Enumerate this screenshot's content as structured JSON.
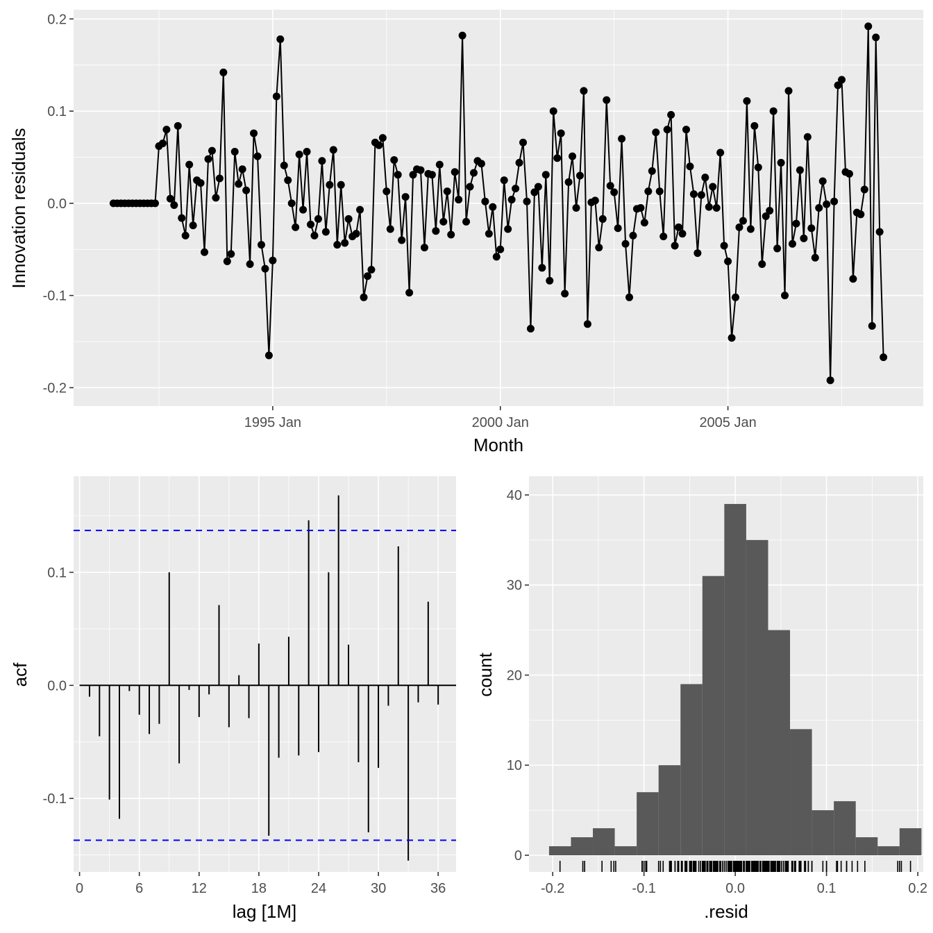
{
  "colors": {
    "panel": "#ebebeb",
    "grid": "#ffffff",
    "series": "#000000",
    "bound": "#0000ff",
    "hist_fill": "#595959"
  },
  "chart_data": [
    {
      "type": "line",
      "ylabel": "Innovation residuals",
      "xlabel": "Month",
      "ylim": [
        -0.22,
        0.21
      ],
      "y_ticks": [
        {
          "v": -0.2,
          "label": "-0.2"
        },
        {
          "v": -0.1,
          "label": "-0.1"
        },
        {
          "v": 0.0,
          "label": "0.0"
        },
        {
          "v": 0.1,
          "label": "0.1"
        },
        {
          "v": 0.2,
          "label": "0.2"
        }
      ],
      "x_ticks": [
        {
          "v": "1995-01",
          "label": "1995 Jan"
        },
        {
          "v": "2000-01",
          "label": "2000 Jan"
        },
        {
          "v": "2005-01",
          "label": "2005 Jan"
        }
      ],
      "x_start": "1991-07",
      "markers": true,
      "values": [
        0,
        0,
        0,
        0,
        0,
        0,
        0,
        0,
        0,
        0,
        0,
        0,
        0.062,
        0.065,
        0.08,
        0.005,
        -0.002,
        0.084,
        -0.016,
        -0.035,
        0.042,
        -0.024,
        0.025,
        0.022,
        -0.053,
        0.048,
        0.057,
        0.006,
        0.027,
        0.142,
        -0.063,
        -0.055,
        0.056,
        0.021,
        0.037,
        0.014,
        -0.066,
        0.076,
        0.051,
        -0.045,
        -0.071,
        -0.165,
        -0.062,
        0.116,
        0.178,
        0.041,
        0.025,
        0.0,
        -0.026,
        0.053,
        -0.007,
        0.056,
        -0.023,
        -0.035,
        -0.017,
        0.046,
        -0.031,
        0.02,
        0.058,
        -0.045,
        0.02,
        -0.043,
        -0.017,
        -0.036,
        -0.033,
        -0.007,
        -0.102,
        -0.079,
        -0.072,
        0.066,
        0.063,
        0.071,
        0.013,
        -0.028,
        0.047,
        0.031,
        -0.04,
        0.007,
        -0.097,
        0.031,
        0.037,
        0.036,
        -0.048,
        0.032,
        0.031,
        -0.03,
        0.042,
        -0.02,
        0.013,
        -0.034,
        0.034,
        0.004,
        0.182,
        -0.02,
        0.018,
        0.033,
        0.046,
        0.043,
        0.002,
        -0.033,
        -0.004,
        -0.058,
        -0.05,
        0.025,
        -0.028,
        0.004,
        0.016,
        0.044,
        0.066,
        0.002,
        -0.136,
        0.012,
        0.018,
        -0.07,
        0.031,
        -0.084,
        0.1,
        0.049,
        0.076,
        -0.098,
        0.023,
        0.051,
        -0.005,
        0.03,
        0.122,
        -0.131,
        0.001,
        0.003,
        -0.048,
        -0.017,
        0.112,
        0.019,
        0.012,
        -0.027,
        0.07,
        -0.044,
        -0.102,
        -0.035,
        -0.006,
        -0.005,
        -0.021,
        0.013,
        0.035,
        0.077,
        0.013,
        -0.036,
        0.08,
        0.096,
        -0.046,
        -0.026,
        -0.033,
        0.08,
        0.04,
        0.01,
        -0.054,
        0.009,
        0.028,
        -0.004,
        0.018,
        -0.005,
        0.055,
        -0.046,
        -0.063,
        -0.146,
        -0.102,
        -0.026,
        -0.019,
        0.111,
        -0.028,
        0.084,
        0.039,
        -0.066,
        -0.014,
        -0.008,
        0.1,
        -0.049,
        0.044,
        -0.1,
        0.122,
        -0.044,
        -0.022,
        0.036,
        -0.038,
        0.072,
        -0.027,
        -0.059,
        -0.005,
        0.024,
        -0.001,
        -0.192,
        0.002,
        0.128,
        0.134,
        0.034,
        0.032,
        -0.082,
        -0.01,
        -0.012,
        0.015,
        0.192,
        -0.133,
        0.18,
        -0.031,
        -0.167
      ]
    },
    {
      "type": "bar",
      "subtype": "acf",
      "ylabel": "acf",
      "xlabel": "lag [1M]",
      "ylim": [
        -0.165,
        0.185
      ],
      "xlim": [
        -0.6,
        37.8
      ],
      "x_ticks": [
        0,
        6,
        12,
        18,
        24,
        30,
        36
      ],
      "y_ticks": [
        {
          "v": -0.1,
          "label": "-0.1"
        },
        {
          "v": 0.0,
          "label": "0.0"
        },
        {
          "v": 0.1,
          "label": "0.1"
        }
      ],
      "bounds": [
        0.137,
        -0.137
      ],
      "lags": [
        1,
        2,
        3,
        4,
        5,
        6,
        7,
        8,
        9,
        10,
        11,
        12,
        13,
        14,
        15,
        16,
        17,
        18,
        19,
        20,
        21,
        22,
        23,
        24,
        25,
        26,
        27,
        28,
        29,
        30,
        31,
        32,
        33,
        34,
        35,
        36
      ],
      "values": [
        -0.01,
        -0.045,
        -0.101,
        -0.118,
        -0.005,
        -0.026,
        -0.043,
        -0.034,
        0.1,
        -0.069,
        -0.004,
        -0.028,
        -0.008,
        0.071,
        -0.037,
        0.009,
        -0.029,
        0.037,
        -0.133,
        -0.064,
        0.043,
        -0.062,
        0.146,
        -0.059,
        0.1,
        0.168,
        0.036,
        -0.068,
        -0.13,
        -0.073,
        -0.018,
        0.123,
        -0.155,
        -0.015,
        0.074,
        -0.017
      ]
    },
    {
      "type": "bar",
      "subtype": "histogram",
      "ylabel": "count",
      "xlabel": ".resid",
      "xlim": [
        -0.226,
        0.206
      ],
      "ylim": [
        0,
        41
      ],
      "x_ticks": [
        {
          "v": -0.2,
          "label": "-0.2"
        },
        {
          "v": -0.1,
          "label": "-0.1"
        },
        {
          "v": 0.0,
          "label": "0.0"
        },
        {
          "v": 0.1,
          "label": "0.1"
        },
        {
          "v": 0.2,
          "label": "0.2"
        }
      ],
      "y_ticks": [
        0,
        10,
        20,
        30,
        40
      ],
      "bin_start": -0.204,
      "bin_width": 0.024,
      "counts": [
        1,
        2,
        3,
        1,
        7,
        10,
        19,
        31,
        39,
        35,
        25,
        14,
        5,
        6,
        2,
        1,
        3
      ],
      "rug": true
    }
  ]
}
